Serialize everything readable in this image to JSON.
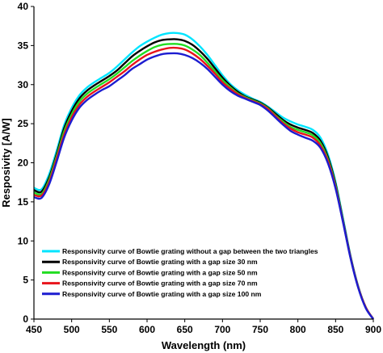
{
  "chart_data": {
    "type": "line",
    "title": "",
    "xlabel": "Wavelength (nm)",
    "ylabel": "Resposivity [A/W]",
    "xlim": [
      450,
      900
    ],
    "ylim": [
      0,
      40
    ],
    "x_ticks": [
      "450",
      "500",
      "550",
      "600",
      "650",
      "700",
      "750",
      "800",
      "850",
      "900"
    ],
    "y_ticks": [
      "0",
      "5",
      "10",
      "15",
      "20",
      "25",
      "30",
      "35",
      "40"
    ],
    "grid": false,
    "legend_position": "bottom-left",
    "series": [
      {
        "name": "Responsivity curve of Bowtie grating without a gap between the two triangles",
        "color": "#00e5ff",
        "points": [
          [
            450,
            16.8
          ],
          [
            460,
            16.6
          ],
          [
            470,
            18.5
          ],
          [
            480,
            21.5
          ],
          [
            490,
            24.8
          ],
          [
            500,
            27.0
          ],
          [
            510,
            28.6
          ],
          [
            520,
            29.6
          ],
          [
            530,
            30.3
          ],
          [
            540,
            30.9
          ],
          [
            550,
            31.5
          ],
          [
            560,
            32.3
          ],
          [
            570,
            33.2
          ],
          [
            580,
            34.1
          ],
          [
            590,
            34.9
          ],
          [
            600,
            35.5
          ],
          [
            610,
            36.0
          ],
          [
            620,
            36.4
          ],
          [
            630,
            36.6
          ],
          [
            640,
            36.6
          ],
          [
            650,
            36.4
          ],
          [
            660,
            35.8
          ],
          [
            670,
            34.9
          ],
          [
            680,
            33.8
          ],
          [
            690,
            32.5
          ],
          [
            700,
            31.2
          ],
          [
            710,
            30.1
          ],
          [
            720,
            29.3
          ],
          [
            730,
            28.7
          ],
          [
            740,
            28.2
          ],
          [
            750,
            27.8
          ],
          [
            760,
            27.2
          ],
          [
            770,
            26.5
          ],
          [
            780,
            25.8
          ],
          [
            790,
            25.3
          ],
          [
            800,
            24.9
          ],
          [
            810,
            24.6
          ],
          [
            820,
            24.2
          ],
          [
            830,
            23.2
          ],
          [
            840,
            21.0
          ],
          [
            850,
            17.5
          ],
          [
            860,
            12.8
          ],
          [
            870,
            8.0
          ],
          [
            880,
            4.2
          ],
          [
            890,
            1.5
          ],
          [
            900,
            0.0
          ]
        ]
      },
      {
        "name": "Responsivity curve of Bowtie grating with a gap size 30 nm",
        "color": "#000000",
        "points": [
          [
            450,
            16.5
          ],
          [
            460,
            16.3
          ],
          [
            470,
            18.1
          ],
          [
            480,
            21.1
          ],
          [
            490,
            24.4
          ],
          [
            500,
            26.6
          ],
          [
            510,
            28.2
          ],
          [
            520,
            29.2
          ],
          [
            530,
            29.9
          ],
          [
            540,
            30.5
          ],
          [
            550,
            31.1
          ],
          [
            560,
            31.8
          ],
          [
            570,
            32.7
          ],
          [
            580,
            33.6
          ],
          [
            590,
            34.3
          ],
          [
            600,
            34.9
          ],
          [
            610,
            35.4
          ],
          [
            620,
            35.7
          ],
          [
            630,
            35.8
          ],
          [
            640,
            35.8
          ],
          [
            650,
            35.6
          ],
          [
            660,
            35.1
          ],
          [
            670,
            34.3
          ],
          [
            680,
            33.3
          ],
          [
            690,
            32.1
          ],
          [
            700,
            30.9
          ],
          [
            710,
            29.9
          ],
          [
            720,
            29.1
          ],
          [
            730,
            28.5
          ],
          [
            740,
            28.1
          ],
          [
            750,
            27.7
          ],
          [
            760,
            27.1
          ],
          [
            770,
            26.3
          ],
          [
            780,
            25.5
          ],
          [
            790,
            24.9
          ],
          [
            800,
            24.5
          ],
          [
            810,
            24.2
          ],
          [
            820,
            23.8
          ],
          [
            830,
            22.8
          ],
          [
            840,
            20.7
          ],
          [
            850,
            17.3
          ],
          [
            860,
            12.6
          ],
          [
            870,
            7.9
          ],
          [
            880,
            4.1
          ],
          [
            890,
            1.5
          ],
          [
            900,
            0.0
          ]
        ]
      },
      {
        "name": "Responsivity curve of Bowtie grating with a gap size 50 nm",
        "color": "#22dd22",
        "points": [
          [
            450,
            16.2
          ],
          [
            460,
            16.0
          ],
          [
            470,
            17.8
          ],
          [
            480,
            20.8
          ],
          [
            490,
            24.0
          ],
          [
            500,
            26.2
          ],
          [
            510,
            27.8
          ],
          [
            520,
            28.8
          ],
          [
            530,
            29.5
          ],
          [
            540,
            30.1
          ],
          [
            550,
            30.7
          ],
          [
            560,
            31.4
          ],
          [
            570,
            32.2
          ],
          [
            580,
            33.0
          ],
          [
            590,
            33.7
          ],
          [
            600,
            34.3
          ],
          [
            610,
            34.8
          ],
          [
            620,
            35.1
          ],
          [
            630,
            35.2
          ],
          [
            640,
            35.2
          ],
          [
            650,
            35.0
          ],
          [
            660,
            34.5
          ],
          [
            670,
            33.8
          ],
          [
            680,
            32.8
          ],
          [
            690,
            31.7
          ],
          [
            700,
            30.6
          ],
          [
            710,
            29.7
          ],
          [
            720,
            28.9
          ],
          [
            730,
            28.4
          ],
          [
            740,
            28.0
          ],
          [
            750,
            27.6
          ],
          [
            760,
            27.0
          ],
          [
            770,
            26.1
          ],
          [
            780,
            25.3
          ],
          [
            790,
            24.6
          ],
          [
            800,
            24.2
          ],
          [
            810,
            23.9
          ],
          [
            820,
            23.5
          ],
          [
            830,
            22.5
          ],
          [
            840,
            20.4
          ],
          [
            850,
            17.1
          ],
          [
            860,
            12.5
          ],
          [
            870,
            7.8
          ],
          [
            880,
            4.1
          ],
          [
            890,
            1.5
          ],
          [
            900,
            0.0
          ]
        ]
      },
      {
        "name": "Responsivity curve of Bowtie grating with a gap size 70 nm",
        "color": "#e8141c",
        "points": [
          [
            450,
            15.9
          ],
          [
            460,
            15.8
          ],
          [
            470,
            17.5
          ],
          [
            480,
            20.5
          ],
          [
            490,
            23.6
          ],
          [
            500,
            25.8
          ],
          [
            510,
            27.4
          ],
          [
            520,
            28.4
          ],
          [
            530,
            29.1
          ],
          [
            540,
            29.7
          ],
          [
            550,
            30.3
          ],
          [
            560,
            31.0
          ],
          [
            570,
            31.7
          ],
          [
            580,
            32.5
          ],
          [
            590,
            33.2
          ],
          [
            600,
            33.8
          ],
          [
            610,
            34.2
          ],
          [
            620,
            34.5
          ],
          [
            630,
            34.7
          ],
          [
            640,
            34.7
          ],
          [
            650,
            34.5
          ],
          [
            660,
            34.0
          ],
          [
            670,
            33.3
          ],
          [
            680,
            32.4
          ],
          [
            690,
            31.4
          ],
          [
            700,
            30.3
          ],
          [
            710,
            29.5
          ],
          [
            720,
            28.8
          ],
          [
            730,
            28.3
          ],
          [
            740,
            27.9
          ],
          [
            750,
            27.5
          ],
          [
            760,
            26.9
          ],
          [
            770,
            26.0
          ],
          [
            780,
            25.1
          ],
          [
            790,
            24.4
          ],
          [
            800,
            23.9
          ],
          [
            810,
            23.6
          ],
          [
            820,
            23.2
          ],
          [
            830,
            22.2
          ],
          [
            840,
            20.2
          ],
          [
            850,
            16.9
          ],
          [
            860,
            12.4
          ],
          [
            870,
            7.8
          ],
          [
            880,
            4.1
          ],
          [
            890,
            1.5
          ],
          [
            900,
            0.0
          ]
        ]
      },
      {
        "name": "Responsivity curve of Bowtie grating with a gap size 100 nm",
        "color": "#1c1cd0",
        "points": [
          [
            450,
            15.6
          ],
          [
            460,
            15.5
          ],
          [
            470,
            17.2
          ],
          [
            480,
            20.1
          ],
          [
            490,
            23.2
          ],
          [
            500,
            25.4
          ],
          [
            510,
            27.0
          ],
          [
            520,
            28.0
          ],
          [
            530,
            28.7
          ],
          [
            540,
            29.3
          ],
          [
            550,
            29.8
          ],
          [
            560,
            30.5
          ],
          [
            570,
            31.2
          ],
          [
            580,
            32.0
          ],
          [
            590,
            32.6
          ],
          [
            600,
            33.2
          ],
          [
            610,
            33.6
          ],
          [
            620,
            33.9
          ],
          [
            630,
            34.0
          ],
          [
            640,
            34.0
          ],
          [
            650,
            33.8
          ],
          [
            660,
            33.4
          ],
          [
            670,
            32.8
          ],
          [
            680,
            32.0
          ],
          [
            690,
            31.0
          ],
          [
            700,
            30.0
          ],
          [
            710,
            29.2
          ],
          [
            720,
            28.6
          ],
          [
            730,
            28.2
          ],
          [
            740,
            27.8
          ],
          [
            750,
            27.4
          ],
          [
            760,
            26.7
          ],
          [
            770,
            25.8
          ],
          [
            780,
            24.9
          ],
          [
            790,
            24.1
          ],
          [
            800,
            23.6
          ],
          [
            810,
            23.2
          ],
          [
            820,
            22.8
          ],
          [
            830,
            21.9
          ],
          [
            840,
            19.9
          ],
          [
            850,
            16.7
          ],
          [
            860,
            12.3
          ],
          [
            870,
            7.7
          ],
          [
            880,
            4.0
          ],
          [
            890,
            1.4
          ],
          [
            900,
            0.0
          ]
        ]
      }
    ]
  }
}
